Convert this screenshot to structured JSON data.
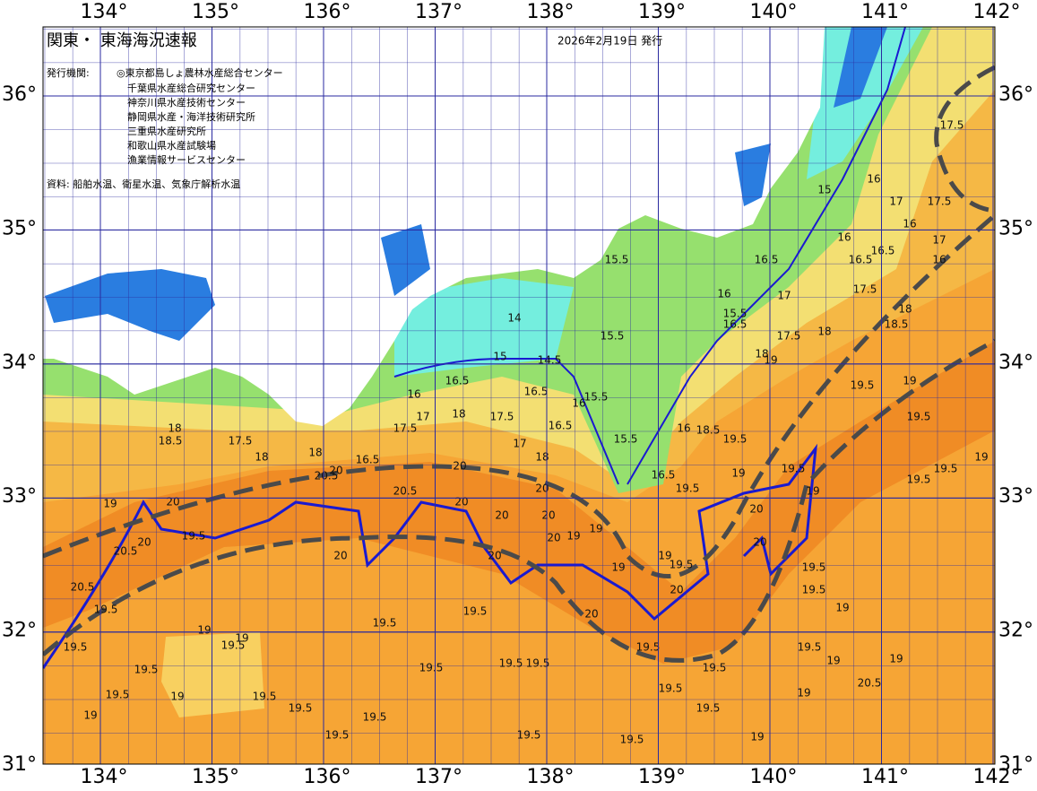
{
  "header": {
    "title": "関東・ 東海海況速報",
    "date": "2026年2月19日 発行"
  },
  "issuers": {
    "label": "発行機関:",
    "names": [
      "◎東京都島しょ農林水産総合センター",
      "千葉県水産総合研究センター",
      "神奈川県水産技術センター",
      "静岡県水産・海洋技術研究所",
      "三重県水産研究所",
      "和歌山県水産試験場",
      "漁業情報サービスセンター"
    ]
  },
  "source": "資料: 船舶水温、衛星水温、気象庁解析水温",
  "longitude_labels": [
    {
      "value": 134,
      "label": "134°"
    },
    {
      "value": 135,
      "label": "135°"
    },
    {
      "value": 136,
      "label": "136°"
    },
    {
      "value": 137,
      "label": "137°"
    },
    {
      "value": 138,
      "label": "138°"
    },
    {
      "value": 139,
      "label": "139°"
    },
    {
      "value": 140,
      "label": "140°"
    },
    {
      "value": 141,
      "label": "141°"
    },
    {
      "value": 142,
      "label": "142°"
    }
  ],
  "latitude_labels": [
    {
      "value": 36,
      "label": "36°"
    },
    {
      "value": 35,
      "label": "35°"
    },
    {
      "value": 34,
      "label": "34°"
    },
    {
      "value": 33,
      "label": "33°"
    },
    {
      "value": 32,
      "label": "32°"
    },
    {
      "value": 31,
      "label": "31°"
    }
  ],
  "contour_labels": [
    "17.5",
    "15",
    "16",
    "17",
    "17.5",
    "16",
    "16.5",
    "16.5",
    "16",
    "17",
    "16",
    "17.5",
    "16",
    "16.5",
    "17",
    "15.5",
    "16.5",
    "18",
    "18.5",
    "18",
    "18",
    "19",
    "17.5",
    "19.5",
    "19",
    "19.5",
    "19.5",
    "19.5",
    "19",
    "14",
    "15.5",
    "15.5",
    "15",
    "14.5",
    "16.5",
    "16",
    "15.5",
    "16.5",
    "16",
    "17",
    "17.5",
    "18",
    "17.5",
    "16.5",
    "17",
    "18",
    "15.5",
    "16",
    "18.5",
    "19.5",
    "19",
    "19.5",
    "19",
    "16.5",
    "19.5",
    "18",
    "18.5",
    "17.5",
    "18",
    "18",
    "16.5",
    "20",
    "20.5",
    "19",
    "20",
    "20",
    "19.5",
    "20.5",
    "20.5",
    "19.5",
    "20.5",
    "20",
    "20",
    "20",
    "20",
    "20",
    "20",
    "20",
    "19",
    "19",
    "20",
    "19",
    "19",
    "19.5",
    "20",
    "20",
    "20",
    "20",
    "19.5",
    "19.5",
    "19",
    "19.5",
    "19",
    "19",
    "19.5",
    "19.5",
    "19.5",
    "19",
    "19",
    "19.5",
    "19.5",
    "19.5",
    "19.5",
    "19.5",
    "19.5",
    "19.5",
    "19.5",
    "19.5",
    "19.5",
    "19.5",
    "19.5",
    "19.5",
    "19.5",
    "19.5",
    "19",
    "19",
    "19.5",
    "19",
    "19",
    "20.5"
  ]
}
